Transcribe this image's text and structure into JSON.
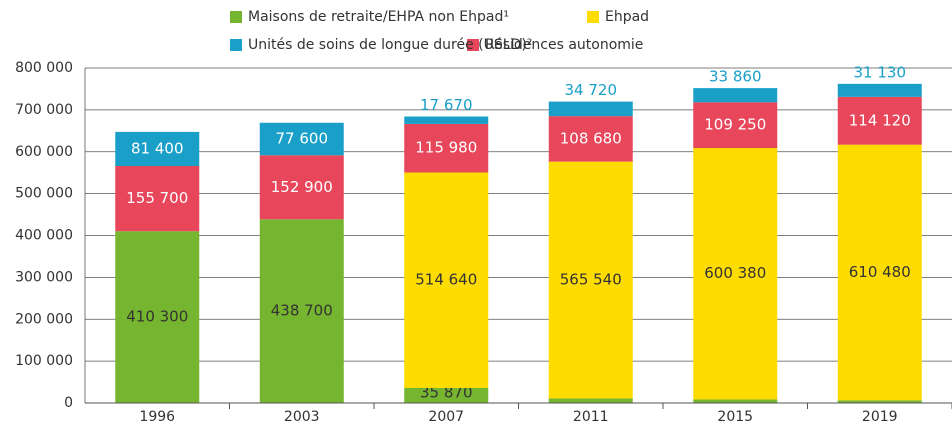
{
  "chart_data": {
    "type": "stacked_bar",
    "categories": [
      "1996",
      "2003",
      "2007",
      "2011",
      "2015",
      "2019"
    ],
    "series": [
      {
        "name": "Maisons de retraite/EHPA non Ehpad¹",
        "color": "#76b52f",
        "values": [
          410300,
          438700,
          35870,
          10850,
          8500,
          6450
        ],
        "value_labels": [
          "410 300",
          "438 700",
          "35 870",
          "10 850",
          "8 500",
          "6 450"
        ]
      },
      {
        "name": "Ehpad",
        "color": "#ffdc00",
        "values": [
          null,
          null,
          514640,
          565540,
          600380,
          610480
        ],
        "value_labels": [
          null,
          null,
          "514 640",
          "565 540",
          "600 380",
          "610 480"
        ]
      },
      {
        "name": "Résidences autonomie",
        "color": "#e8465a",
        "values": [
          155700,
          152900,
          115980,
          108680,
          109250,
          114120
        ],
        "value_labels": [
          "155 700",
          "152 900",
          "115 980",
          "108 680",
          "109 250",
          "114 120"
        ]
      },
      {
        "name": "Unités de soins de longue durée (USLD)²",
        "color": "#1aa0c8",
        "values": [
          81400,
          77600,
          17670,
          34720,
          33860,
          31130
        ],
        "value_labels": [
          "81 400",
          "77 600",
          "17 670",
          "34 720",
          "33 860",
          "31 130"
        ]
      }
    ],
    "ylim": [
      0,
      800000
    ],
    "yticks": [
      0,
      {
        "value": 100000,
        "label": "100 000"
      },
      {
        "value": 200000,
        "label": "200 000"
      },
      {
        "value": 300000,
        "label": "300 000"
      },
      {
        "value": 400000,
        "label": "400 000"
      },
      {
        "value": 500000,
        "label": "500 000"
      },
      {
        "value": 600000,
        "label": "600 000"
      },
      {
        "value": 700000,
        "label": "700 000"
      },
      {
        "value": 800000,
        "label": "800 000"
      }
    ],
    "grid": true
  }
}
